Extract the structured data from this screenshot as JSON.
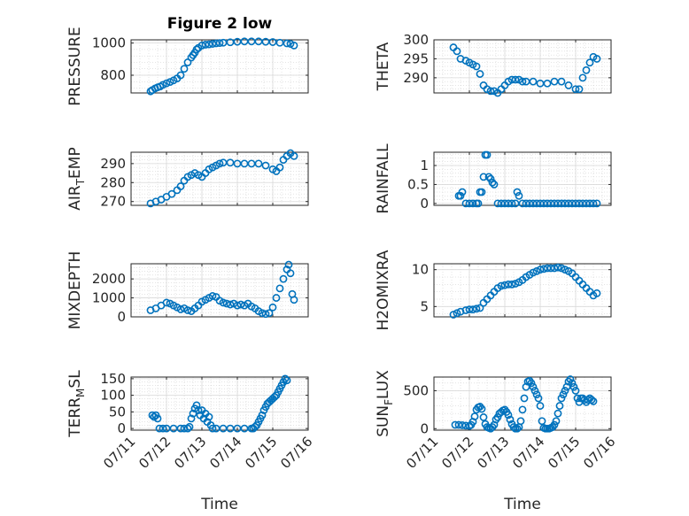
{
  "figure": {
    "title": "Figure 2 low",
    "marker_color": "#0072BD"
  },
  "chart_data": [
    {
      "type": "scatter",
      "title": "Figure 2 low",
      "ylabel": "PRESSURE",
      "xlabel": "",
      "xlim": [
        0,
        5
      ],
      "ylim": [
        690,
        1020
      ],
      "yticks": [
        800,
        1000
      ],
      "xticks": [],
      "grid": true,
      "minor_grid": true,
      "series": [
        {
          "x": [
            0.55,
            0.6,
            0.68,
            0.75,
            0.82,
            0.9,
            1.0,
            1.1,
            1.2,
            1.3,
            1.4,
            1.5,
            1.6,
            1.7,
            1.75,
            1.8,
            1.85,
            1.9,
            2.0,
            2.1,
            2.2,
            2.3,
            2.4,
            2.5,
            2.6,
            2.8,
            3.0,
            3.2,
            3.4,
            3.6,
            3.8,
            4.0,
            4.2,
            4.4,
            4.5,
            4.6
          ],
          "y": [
            700,
            708,
            718,
            725,
            730,
            740,
            750,
            758,
            768,
            780,
            800,
            840,
            880,
            910,
            925,
            940,
            960,
            970,
            985,
            990,
            992,
            995,
            998,
            1000,
            1002,
            1005,
            1008,
            1010,
            1010,
            1010,
            1008,
            1006,
            1002,
            998,
            995,
            985
          ]
        }
      ]
    },
    {
      "type": "scatter",
      "ylabel": "THETA",
      "xlabel": "",
      "xlim": [
        0,
        5
      ],
      "ylim": [
        286,
        300
      ],
      "yticks": [
        290,
        295,
        300
      ],
      "xticks": [],
      "grid": true,
      "minor_grid": true,
      "series": [
        {
          "x": [
            0.55,
            0.65,
            0.75,
            0.9,
            1.0,
            1.1,
            1.2,
            1.3,
            1.4,
            1.5,
            1.6,
            1.7,
            1.8,
            1.9,
            2.0,
            2.1,
            2.2,
            2.3,
            2.4,
            2.5,
            2.6,
            2.8,
            3.0,
            3.2,
            3.4,
            3.6,
            3.8,
            4.0,
            4.1,
            4.2,
            4.3,
            4.4,
            4.5,
            4.6
          ],
          "y": [
            298,
            297,
            295,
            294.5,
            294,
            293.5,
            293,
            291,
            288,
            287,
            286.5,
            286.5,
            286,
            287,
            288,
            289,
            289.5,
            289.5,
            289.5,
            289,
            289,
            289,
            288.5,
            288.5,
            289,
            289,
            288,
            287,
            287,
            290,
            292,
            294,
            295.5,
            295
          ]
        }
      ]
    },
    {
      "type": "scatter",
      "ylabel": "AIR_TEMP",
      "xlabel": "",
      "xlim": [
        0,
        5
      ],
      "ylim": [
        268,
        296
      ],
      "yticks": [
        270,
        280,
        290
      ],
      "xticks": [],
      "grid": true,
      "minor_grid": true,
      "series": [
        {
          "x": [
            0.55,
            0.7,
            0.85,
            1.0,
            1.15,
            1.3,
            1.4,
            1.5,
            1.6,
            1.7,
            1.8,
            1.9,
            2.0,
            2.1,
            2.2,
            2.3,
            2.4,
            2.5,
            2.6,
            2.8,
            3.0,
            3.2,
            3.4,
            3.6,
            3.8,
            4.0,
            4.1,
            4.2,
            4.3,
            4.4,
            4.5,
            4.6
          ],
          "y": [
            269,
            270,
            271,
            272.5,
            274,
            276,
            278,
            281,
            283,
            284,
            285,
            284,
            283,
            285,
            287,
            288,
            289,
            290,
            290.5,
            290.5,
            290,
            290,
            290,
            290,
            289,
            287,
            286,
            288,
            292,
            294,
            295.5,
            294
          ]
        }
      ]
    },
    {
      "type": "scatter",
      "ylabel": "RAINFALL",
      "xlabel": "",
      "xlim": [
        0,
        5
      ],
      "ylim": [
        -0.05,
        1.35
      ],
      "yticks": [
        0,
        0.5,
        1
      ],
      "xticks": [],
      "grid": true,
      "minor_grid": true,
      "series": [
        {
          "x": [
            0.7,
            0.75,
            0.8,
            0.9,
            1.0,
            1.1,
            1.2,
            1.25,
            1.3,
            1.35,
            1.4,
            1.45,
            1.5,
            1.55,
            1.6,
            1.65,
            1.7,
            1.8,
            1.9,
            2.0,
            2.1,
            2.2,
            2.3,
            2.35,
            2.4,
            2.5,
            2.6,
            2.7,
            2.8,
            2.9,
            3.0,
            3.1,
            3.2,
            3.3,
            3.4,
            3.5,
            3.6,
            3.7,
            3.8,
            3.9,
            4.0,
            4.1,
            4.2,
            4.3,
            4.4,
            4.5,
            4.6
          ],
          "y": [
            0.2,
            0.2,
            0.3,
            0,
            0,
            0,
            0,
            0,
            0.3,
            0.3,
            0.7,
            1.28,
            1.28,
            0.7,
            0.65,
            0.55,
            0.5,
            0,
            0,
            0,
            0,
            0,
            0,
            0.3,
            0.2,
            0,
            0,
            0,
            0,
            0,
            0,
            0,
            0,
            0,
            0,
            0,
            0,
            0,
            0,
            0,
            0,
            0,
            0,
            0,
            0,
            0,
            0
          ]
        }
      ]
    },
    {
      "type": "scatter",
      "ylabel": "MIXDEPTH",
      "xlabel": "",
      "xlim": [
        0,
        5
      ],
      "ylim": [
        0,
        2800
      ],
      "yticks": [
        0,
        1000,
        2000
      ],
      "xticks": [],
      "grid": true,
      "minor_grid": true,
      "series": [
        {
          "x": [
            0.55,
            0.7,
            0.85,
            1.0,
            1.1,
            1.2,
            1.3,
            1.4,
            1.5,
            1.6,
            1.7,
            1.8,
            1.9,
            2.0,
            2.1,
            2.2,
            2.3,
            2.4,
            2.5,
            2.6,
            2.7,
            2.8,
            2.9,
            3.0,
            3.1,
            3.2,
            3.3,
            3.4,
            3.5,
            3.6,
            3.7,
            3.8,
            3.9,
            4.0,
            4.1,
            4.2,
            4.3,
            4.4,
            4.45,
            4.5,
            4.55,
            4.6
          ],
          "y": [
            350,
            450,
            600,
            750,
            700,
            600,
            500,
            400,
            450,
            350,
            300,
            450,
            600,
            800,
            900,
            1000,
            1100,
            1050,
            850,
            750,
            700,
            650,
            700,
            600,
            650,
            600,
            700,
            550,
            450,
            300,
            200,
            150,
            200,
            500,
            1000,
            1500,
            2000,
            2500,
            2750,
            2300,
            1200,
            900
          ]
        }
      ]
    },
    {
      "type": "scatter",
      "ylabel": "H2OMIXRA",
      "xlabel": "",
      "xlim": [
        0,
        5
      ],
      "ylim": [
        3.6,
        10.8
      ],
      "yticks": [
        5,
        10
      ],
      "xticks": [],
      "grid": true,
      "minor_grid": true,
      "series": [
        {
          "x": [
            0.55,
            0.65,
            0.75,
            0.9,
            1.0,
            1.1,
            1.2,
            1.3,
            1.4,
            1.5,
            1.6,
            1.7,
            1.8,
            1.9,
            2.0,
            2.1,
            2.2,
            2.3,
            2.4,
            2.5,
            2.6,
            2.7,
            2.8,
            2.9,
            3.0,
            3.1,
            3.2,
            3.3,
            3.4,
            3.5,
            3.6,
            3.7,
            3.8,
            3.9,
            4.0,
            4.1,
            4.2,
            4.3,
            4.4,
            4.5,
            4.6
          ],
          "y": [
            3.9,
            4.1,
            4.3,
            4.5,
            4.6,
            4.6,
            4.7,
            4.8,
            5.5,
            6.0,
            6.5,
            7.0,
            7.5,
            7.8,
            7.9,
            8.0,
            8.0,
            8.1,
            8.3,
            8.6,
            9.0,
            9.3,
            9.6,
            9.8,
            10.0,
            10.1,
            10.2,
            10.2,
            10.2,
            10.3,
            10.2,
            10.0,
            9.8,
            9.5,
            9.0,
            8.5,
            8.0,
            7.5,
            7.0,
            6.5,
            6.8
          ]
        }
      ]
    },
    {
      "type": "scatter",
      "ylabel": "TERR_MSL",
      "xlabel": "Time",
      "xlim": [
        0,
        5
      ],
      "ylim": [
        -5,
        155
      ],
      "yticks": [
        0,
        50,
        100,
        150
      ],
      "xticks": [
        "07/11",
        "07/12",
        "07/13",
        "07/14",
        "07/15",
        "07/16"
      ],
      "grid": true,
      "minor_grid": true,
      "series": [
        {
          "x": [
            0.6,
            0.65,
            0.7,
            0.75,
            0.8,
            0.9,
            1.0,
            1.2,
            1.4,
            1.5,
            1.6,
            1.65,
            1.7,
            1.75,
            1.8,
            1.85,
            1.9,
            1.95,
            2.0,
            2.05,
            2.1,
            2.15,
            2.2,
            2.25,
            2.3,
            2.4,
            2.6,
            2.8,
            3.0,
            3.2,
            3.4,
            3.45,
            3.5,
            3.55,
            3.6,
            3.65,
            3.7,
            3.75,
            3.8,
            3.85,
            3.9,
            3.95,
            4.0,
            4.05,
            4.1,
            4.15,
            4.2,
            4.25,
            4.3,
            4.35,
            4.4
          ],
          "y": [
            40,
            35,
            40,
            30,
            0,
            0,
            0,
            0,
            0,
            0,
            0,
            5,
            30,
            45,
            60,
            70,
            55,
            40,
            55,
            30,
            45,
            20,
            35,
            10,
            0,
            0,
            0,
            0,
            0,
            0,
            0,
            0,
            5,
            10,
            20,
            30,
            40,
            55,
            65,
            75,
            80,
            85,
            90,
            95,
            100,
            110,
            120,
            130,
            140,
            150,
            145
          ]
        }
      ]
    },
    {
      "type": "scatter",
      "ylabel": "SUN_FLUX",
      "xlabel": "Time",
      "xlim": [
        0,
        5
      ],
      "ylim": [
        -20,
        680
      ],
      "yticks": [
        0,
        500
      ],
      "xticks": [
        "07/11",
        "07/12",
        "07/13",
        "07/14",
        "07/15",
        "07/16"
      ],
      "grid": true,
      "minor_grid": true,
      "series": [
        {
          "x": [
            0.6,
            0.7,
            0.8,
            0.9,
            1.0,
            1.05,
            1.1,
            1.15,
            1.2,
            1.25,
            1.3,
            1.35,
            1.4,
            1.45,
            1.5,
            1.55,
            1.6,
            1.65,
            1.7,
            1.75,
            1.8,
            1.85,
            1.9,
            1.95,
            2.0,
            2.05,
            2.1,
            2.15,
            2.2,
            2.25,
            2.3,
            2.35,
            2.4,
            2.45,
            2.5,
            2.55,
            2.6,
            2.65,
            2.7,
            2.75,
            2.8,
            2.85,
            2.9,
            2.95,
            3.0,
            3.05,
            3.1,
            3.15,
            3.2,
            3.25,
            3.3,
            3.35,
            3.4,
            3.45,
            3.5,
            3.55,
            3.6,
            3.65,
            3.7,
            3.75,
            3.8,
            3.85,
            3.9,
            3.95,
            4.0,
            4.05,
            4.1,
            4.15,
            4.2,
            4.25,
            4.3,
            4.35,
            4.4,
            4.45,
            4.5
          ],
          "y": [
            50,
            50,
            45,
            40,
            35,
            50,
            90,
            160,
            250,
            280,
            290,
            260,
            150,
            60,
            20,
            10,
            0,
            20,
            50,
            120,
            150,
            200,
            220,
            240,
            250,
            220,
            180,
            120,
            60,
            20,
            0,
            0,
            20,
            100,
            250,
            400,
            550,
            620,
            630,
            600,
            550,
            500,
            450,
            400,
            300,
            100,
            10,
            0,
            0,
            0,
            10,
            20,
            50,
            100,
            200,
            300,
            400,
            450,
            500,
            550,
            620,
            650,
            600,
            550,
            500,
            400,
            350,
            400,
            400,
            380,
            350,
            380,
            400,
            380,
            360
          ]
        }
      ]
    }
  ]
}
